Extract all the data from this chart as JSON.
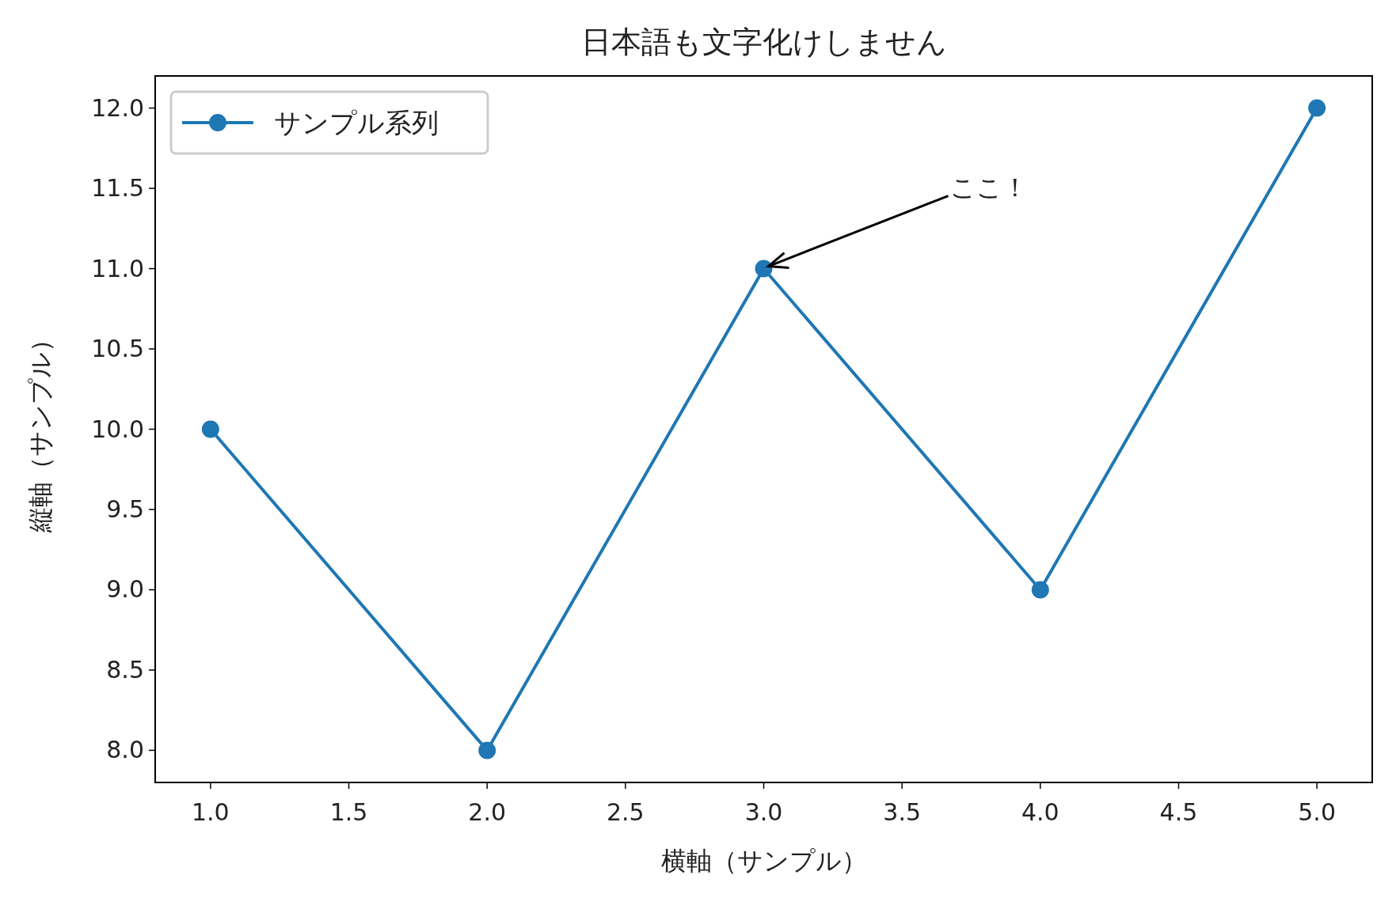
{
  "chart_data": {
    "type": "line",
    "title": "日本語も文字化けしません",
    "xlabel": "横軸（サンプル）",
    "ylabel": "縦軸（サンプル）",
    "x": [
      1,
      2,
      3,
      4,
      5
    ],
    "series": [
      {
        "name": "サンプル系列",
        "color": "#1f77b4",
        "values": [
          10,
          8,
          11,
          9,
          12
        ]
      }
    ],
    "xlim": [
      0.8,
      5.2
    ],
    "ylim": [
      7.8,
      12.2
    ],
    "xticks": [
      {
        "value": 1,
        "label": "1.0"
      },
      {
        "value": 1.5,
        "label": "1.5"
      },
      {
        "value": 2,
        "label": "2.0"
      },
      {
        "value": 2.5,
        "label": "2.5"
      },
      {
        "value": 3,
        "label": "3.0"
      },
      {
        "value": 3.5,
        "label": "3.5"
      },
      {
        "value": 4,
        "label": "4.0"
      },
      {
        "value": 4.5,
        "label": "4.5"
      },
      {
        "value": 5,
        "label": "5.0"
      }
    ],
    "yticks": [
      {
        "value": 8,
        "label": "8.0"
      },
      {
        "value": 8.5,
        "label": "8.5"
      },
      {
        "value": 9,
        "label": "9.0"
      },
      {
        "value": 9.5,
        "label": "9.5"
      },
      {
        "value": 10,
        "label": "10.0"
      },
      {
        "value": 10.5,
        "label": "10.5"
      },
      {
        "value": 11,
        "label": "11.0"
      },
      {
        "value": 11.5,
        "label": "11.5"
      },
      {
        "value": 12,
        "label": "12.0"
      }
    ],
    "annotations": [
      {
        "text": "ここ！",
        "x": 3,
        "y": 11
      }
    ],
    "legend": "top left",
    "grid": false,
    "marker": "circle",
    "line_style": "solid"
  }
}
